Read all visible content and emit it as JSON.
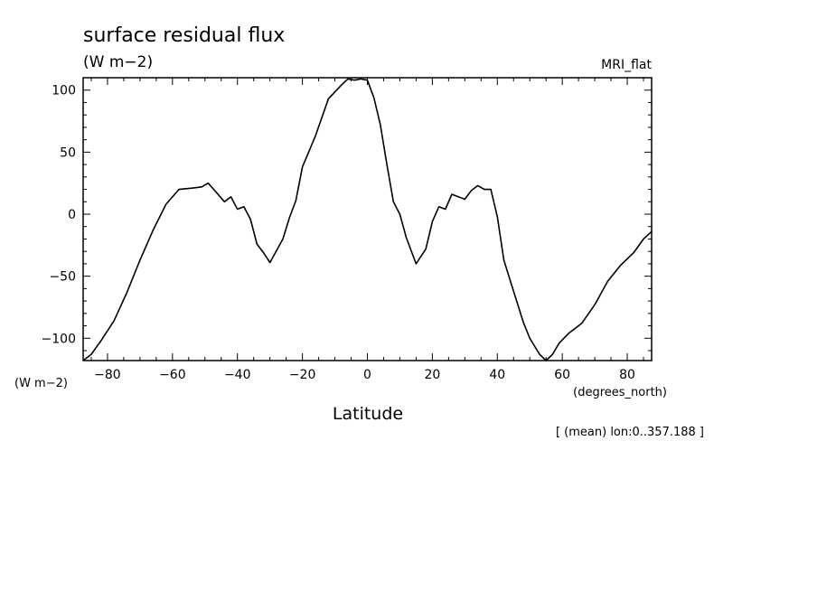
{
  "chart_data": {
    "type": "line",
    "title": "surface residual flux",
    "units_label": "(W m−2)",
    "model_label": "MRI_flat",
    "ylabel": "(W m−2)",
    "xlabel": "Latitude",
    "xunits": "(degrees_north)",
    "note": "[ (mean) lon:0..357.188 ]",
    "xlim": [
      -87.5,
      87.5
    ],
    "ylim": [
      -118,
      110
    ],
    "x_ticks": [
      -80,
      -60,
      -40,
      -20,
      0,
      20,
      40,
      60,
      80
    ],
    "x_tick_labels": [
      "−80",
      "−60",
      "−40",
      "−20",
      "0",
      "20",
      "40",
      "60",
      "80"
    ],
    "y_ticks": [
      -100,
      -50,
      0,
      50,
      100
    ],
    "y_tick_labels": [
      "−100",
      "−50",
      "0",
      "50",
      "100"
    ],
    "grid": false,
    "series": [
      {
        "x": [
          -87.5,
          -85,
          -82,
          -78,
          -74,
          -70,
          -66,
          -62,
          -58,
          -54,
          -51,
          -49,
          -47,
          -44,
          -42,
          -40,
          -38,
          -36,
          -34,
          -32,
          -30,
          -26,
          -24,
          -22,
          -20,
          -16,
          -12,
          -8,
          -6,
          -4,
          -2,
          0,
          2,
          4,
          6,
          8,
          10,
          12,
          15,
          18,
          20,
          22,
          24,
          26,
          30,
          32,
          34,
          36,
          38,
          40,
          42,
          45,
          48,
          50,
          53,
          55,
          57,
          59,
          62,
          66,
          70,
          74,
          78,
          82,
          85,
          87.5
        ],
        "y": [
          -118,
          -113,
          -102,
          -86,
          -63,
          -37,
          -13,
          8,
          20,
          21,
          22,
          25,
          19,
          10,
          14,
          4,
          6,
          -4,
          -24,
          -31,
          -39,
          -20,
          -3,
          11,
          38,
          63,
          93,
          104,
          109,
          108,
          109,
          108,
          94,
          72,
          40,
          10,
          0,
          -19,
          -40,
          -28,
          -6,
          6,
          4,
          16,
          12,
          19,
          23,
          20,
          20,
          -2,
          -37,
          -62,
          -87,
          -100,
          -113,
          -118,
          -113,
          -104,
          -96,
          -88,
          -73,
          -54,
          -41,
          -31,
          -20,
          -14
        ]
      }
    ]
  }
}
